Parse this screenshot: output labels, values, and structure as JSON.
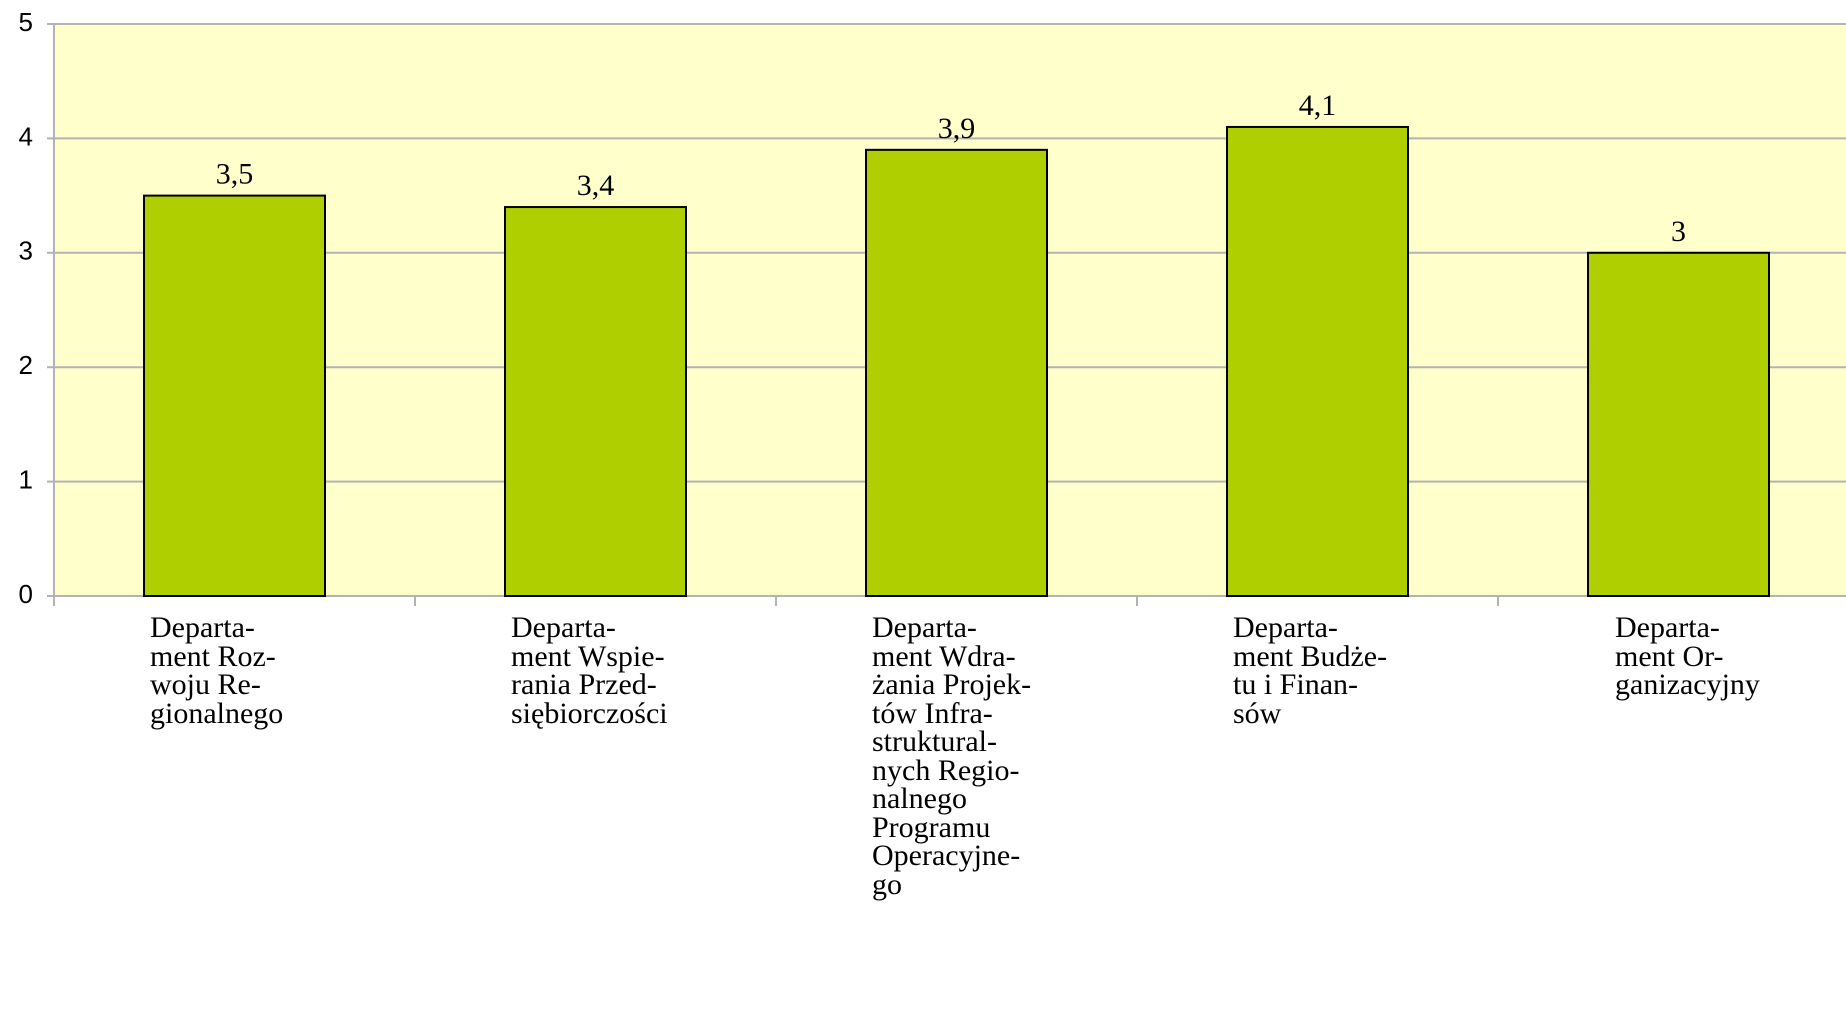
{
  "chart_data": {
    "type": "bar",
    "categories": [
      "Departa-\nment Roz-\nwoju Re-\ngionalnego",
      "Departa-\nment Wspie-\nrania Przed-\nsiębiorczości",
      "Departa-\nment Wdra-\nżania Projek-\ntów Infra-\nstruktural-\nnych Regio-\nnalnego\nProgramu\nOperacyjne-\ngo",
      "Departa-\nment Budże-\ntu i Finan-\nsów",
      "Departa-\nment Or-\nganizacyjny"
    ],
    "values": [
      3.5,
      3.4,
      3.9,
      4.1,
      3
    ],
    "value_labels": [
      "3,5",
      "3,4",
      "3,9",
      "4,1",
      "3"
    ],
    "color": "#afcf00",
    "ylim": [
      0,
      5
    ],
    "yticks": [
      0,
      1,
      2,
      3,
      4,
      5
    ],
    "grid": true
  }
}
